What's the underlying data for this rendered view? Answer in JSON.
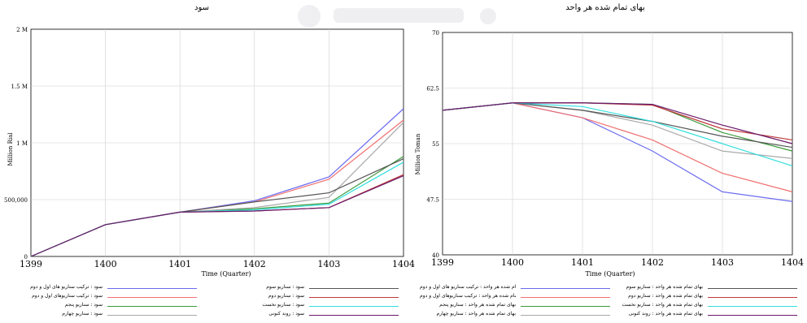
{
  "chart_data": [
    {
      "type": "line",
      "title": "سود",
      "xlabel": "Time (Quarter)",
      "ylabel": "Million Rial",
      "x": [
        1399,
        1400,
        1401,
        1402,
        1403,
        1404
      ],
      "xticks": [
        "1399",
        "1400",
        "1401",
        "1402",
        "1403",
        "1404"
      ],
      "ylim": [
        0,
        2000000
      ],
      "yticks": [
        0,
        500000,
        1000000,
        1500000,
        2000000
      ],
      "ytick_labels": [
        "0",
        "500,000",
        "1 M",
        "1.5 M",
        "2 M"
      ],
      "grid": true,
      "series": [
        {
          "name": "سود : ترکیب سناریو های اول و دوم",
          "color": "#6b6bf0",
          "values": [
            0,
            280000,
            390000,
            490000,
            700000,
            1300000
          ]
        },
        {
          "name": "سود : ترکیب سناریوهای اول و دوم",
          "color": "#f07070",
          "values": [
            0,
            280000,
            390000,
            480000,
            680000,
            1200000
          ]
        },
        {
          "name": "سود : سناریو پنجم",
          "color": "#3a9a3a",
          "values": [
            0,
            280000,
            390000,
            420000,
            470000,
            880000
          ]
        },
        {
          "name": "سود : سناریو چهارم",
          "color": "#a9a9a9",
          "values": [
            0,
            280000,
            390000,
            430000,
            520000,
            1180000
          ]
        },
        {
          "name": "سود : سناریو سوم",
          "color": "#555555",
          "values": [
            0,
            280000,
            390000,
            480000,
            560000,
            860000
          ]
        },
        {
          "name": "سود : سناریو دوم",
          "color": "#c03a3a",
          "values": [
            0,
            280000,
            390000,
            400000,
            430000,
            720000
          ]
        },
        {
          "name": "سود : سناریو نخست",
          "color": "#33dede",
          "values": [
            0,
            280000,
            390000,
            410000,
            460000,
            830000
          ]
        },
        {
          "name": "سود : روند کنونی",
          "color": "#6a1a6a",
          "values": [
            0,
            280000,
            390000,
            400000,
            430000,
            710000
          ]
        }
      ]
    },
    {
      "type": "line",
      "title": "بهای تمام شده هر واحد",
      "xlabel": "Time (Quarter)",
      "ylabel": "Million Toman",
      "x": [
        1399,
        1400,
        1401,
        1402,
        1403,
        1404
      ],
      "xticks": [
        "1399",
        "1400",
        "1401",
        "1402",
        "1403",
        "1404"
      ],
      "ylim": [
        40,
        70
      ],
      "yticks": [
        40,
        47.5,
        55,
        62.5,
        70
      ],
      "ytick_labels": [
        "40",
        "47.5",
        "55",
        "62.5",
        "70"
      ],
      "grid": true,
      "series": [
        {
          "name": "بهای تمام شده هر واحد : ترکیب سناریو های اول و دوم",
          "color": "#6b6bf0",
          "values": [
            59.5,
            60.5,
            58.5,
            54,
            48.5,
            47.2
          ]
        },
        {
          "name": "بهای تمام شده هر واحد : ترکیب سناریوهای اول و دوم",
          "color": "#f07070",
          "values": [
            59.5,
            60.5,
            58.5,
            55.5,
            51,
            48.5
          ]
        },
        {
          "name": "بهای تمام شده هر واحد : سناریو پنجم",
          "color": "#3a9a3a",
          "values": [
            59.5,
            60.5,
            60.5,
            60.3,
            56.5,
            54
          ]
        },
        {
          "name": "بهای تمام شده هر واحد : سناریو چهارم",
          "color": "#a9a9a9",
          "values": [
            59.5,
            60.5,
            59.5,
            57.5,
            54,
            53
          ]
        },
        {
          "name": "بهای تمام شده هر واحد : سناریو سوم",
          "color": "#555555",
          "values": [
            59.5,
            60.5,
            59.5,
            58,
            56,
            54.5
          ]
        },
        {
          "name": "بهای تمام شده هر واحد : سناریو دوم",
          "color": "#c03a3a",
          "values": [
            59.5,
            60.5,
            60.5,
            60.2,
            57,
            55.5
          ]
        },
        {
          "name": "بهای تمام شده هر واحد : سناریو نخست",
          "color": "#33dede",
          "values": [
            59.5,
            60.5,
            60,
            58,
            55,
            52
          ]
        },
        {
          "name": "بهای تمام شده هر واحد : روند کنونی",
          "color": "#6a1a6a",
          "values": [
            59.5,
            60.5,
            60.5,
            60.3,
            57.5,
            55
          ]
        }
      ]
    }
  ]
}
